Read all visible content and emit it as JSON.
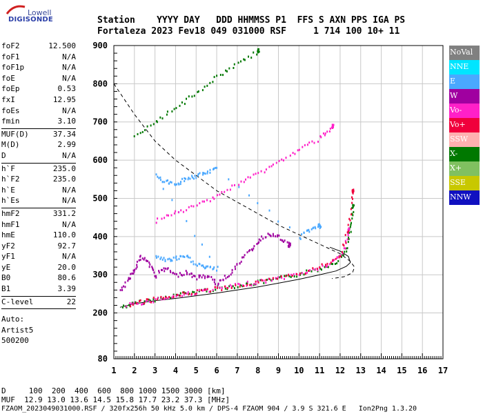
{
  "logo": {
    "line1": "Lowell",
    "line2": "DIGISONDE"
  },
  "header": {
    "line1": "Station    YYYY DAY   DDD HHMMSS P1  FFS S AXN PPS IGA PS",
    "line2": "Fortaleza 2023 Fev18 049 031000 RSF     1 714 100 10+ 11"
  },
  "params": [
    {
      "group": [
        {
          "name": "foF2",
          "value": "12.500"
        },
        {
          "name": "foF1",
          "value": "N/A"
        },
        {
          "name": "foF1p",
          "value": "N/A"
        },
        {
          "name": "foE",
          "value": "N/A"
        },
        {
          "name": "foEp",
          "value": "0.53"
        },
        {
          "name": "fxI",
          "value": "12.95"
        },
        {
          "name": "foEs",
          "value": "N/A"
        },
        {
          "name": "fmin",
          "value": "3.10"
        }
      ]
    },
    {
      "group": [
        {
          "name": "MUF(D)",
          "value": "37.34"
        },
        {
          "name": "M(D)",
          "value": "2.99"
        },
        {
          "name": "D",
          "value": "N/A"
        }
      ]
    },
    {
      "group": [
        {
          "name": "h`F",
          "value": "235.0"
        },
        {
          "name": "h`F2",
          "value": "235.0"
        },
        {
          "name": "h`E",
          "value": "N/A"
        },
        {
          "name": "h`Es",
          "value": "N/A"
        }
      ]
    },
    {
      "group": [
        {
          "name": "hmF2",
          "value": "331.2"
        },
        {
          "name": "hmF1",
          "value": "N/A"
        },
        {
          "name": "hmE",
          "value": "110.0"
        },
        {
          "name": "yF2",
          "value": "92.7"
        },
        {
          "name": "yF1",
          "value": "N/A"
        },
        {
          "name": "yE",
          "value": "20.0"
        },
        {
          "name": "B0",
          "value": "80.6"
        },
        {
          "name": "B1",
          "value": "3.39"
        }
      ]
    },
    {
      "group": [
        {
          "name": "C-level",
          "value": "22"
        }
      ]
    }
  ],
  "auto": {
    "l1": "Auto:",
    "l2": "Artist5",
    "l3": "500200"
  },
  "legend": [
    {
      "label": "NoVal",
      "bg": "#808080",
      "fg": "#ffffff"
    },
    {
      "label": "NNE",
      "bg": "#00e5ff",
      "fg": "#ffffff"
    },
    {
      "label": "E",
      "bg": "#4aa8ff",
      "fg": "#ffffff"
    },
    {
      "label": "W",
      "bg": "#a000a0",
      "fg": "#ffffff"
    },
    {
      "label": "Vo-",
      "bg": "#ff20c8",
      "fg": "#ffffff"
    },
    {
      "label": "Vo+",
      "bg": "#f0003c",
      "fg": "#ffffff"
    },
    {
      "label": "SSW",
      "bg": "#ffb0b0",
      "fg": "#ffffff"
    },
    {
      "label": "X-",
      "bg": "#007800",
      "fg": "#ffffff"
    },
    {
      "label": "X+",
      "bg": "#80c060",
      "fg": "#ffffff"
    },
    {
      "label": "SSE",
      "bg": "#c8c800",
      "fg": "#ffffff"
    },
    {
      "label": "NNW",
      "bg": "#1010c0",
      "fg": "#ffffff"
    }
  ],
  "footer": {
    "l1": "D     100  200  400  600  800 1000 1500 3000 [km]",
    "l2": "MUF  12.9 13.0 13.6 14.5 15.8 17.7 23.2 37.3 [MHz]",
    "l3": "FZAOM_2023049031000.RSF / 320fx256h 50 kHz 5.0 km / DPS-4 FZAOM 904 / 3.9 S 321.6 E   Ion2Png 1.3.20"
  },
  "chart_data": {
    "type": "scatter",
    "title": "",
    "xlabel": "",
    "ylabel": "",
    "xlim": [
      1,
      17
    ],
    "ylim": [
      80,
      900
    ],
    "x_ticks": [
      1,
      2,
      3,
      4,
      5,
      6,
      7,
      8,
      9,
      10,
      11,
      12,
      13,
      14,
      15,
      16,
      17
    ],
    "y_ticks": [
      80,
      200,
      300,
      400,
      500,
      600,
      700,
      800,
      900
    ],
    "grid": true,
    "series": [
      {
        "name": "X-",
        "color": "#007800",
        "points": [
          [
            1.4,
            218
          ],
          [
            2,
            227
          ],
          [
            3,
            238
          ],
          [
            4,
            249
          ],
          [
            5,
            258
          ],
          [
            6,
            266
          ],
          [
            7,
            274
          ],
          [
            8,
            282
          ],
          [
            9,
            292
          ],
          [
            10,
            304
          ],
          [
            11,
            318
          ],
          [
            11.8,
            338
          ],
          [
            12.3,
            370
          ],
          [
            12.5,
            430
          ],
          [
            12.6,
            480
          ]
        ]
      },
      {
        "name": "Vo-",
        "color": "#ff20c8",
        "points": [
          [
            1.6,
            222
          ],
          [
            2.5,
            232
          ],
          [
            3.5,
            242
          ],
          [
            4.5,
            252
          ],
          [
            5.5,
            262
          ],
          [
            6.5,
            270
          ],
          [
            7.5,
            279
          ],
          [
            8.5,
            288
          ],
          [
            9.5,
            299
          ],
          [
            10.5,
            312
          ],
          [
            11.5,
            330
          ],
          [
            12.1,
            360
          ],
          [
            12.4,
            420
          ]
        ]
      },
      {
        "name": "Vo+",
        "color": "#f0003c",
        "points": [
          [
            1.8,
            225
          ],
          [
            2.8,
            236
          ],
          [
            4,
            248
          ],
          [
            5.2,
            260
          ],
          [
            6.5,
            270
          ],
          [
            8,
            282
          ],
          [
            9.5,
            298
          ],
          [
            11,
            322
          ],
          [
            12,
            355
          ],
          [
            12.4,
            430
          ],
          [
            12.6,
            520
          ]
        ]
      },
      {
        "name": "W",
        "color": "#a000a0",
        "points": [
          [
            1.3,
            260
          ],
          [
            1.7,
            290
          ],
          [
            2,
            320
          ],
          [
            2.3,
            350
          ],
          [
            2.7,
            330
          ],
          [
            3,
            300
          ],
          [
            3.5,
            320
          ],
          [
            4,
            300
          ],
          [
            4.5,
            310
          ],
          [
            5,
            295
          ],
          [
            5.5,
            300
          ],
          [
            6,
            280
          ],
          [
            6.5,
            300
          ],
          [
            7,
            330
          ],
          [
            7.5,
            360
          ],
          [
            8,
            390
          ],
          [
            8.5,
            410
          ],
          [
            9,
            400
          ],
          [
            9.5,
            380
          ]
        ]
      },
      {
        "name": "E",
        "color": "#4aa8ff",
        "points": [
          [
            3,
            350
          ],
          [
            3.5,
            340
          ],
          [
            4,
            345
          ],
          [
            4.5,
            350
          ],
          [
            5,
            330
          ],
          [
            5.5,
            320
          ],
          [
            6,
            318
          ],
          [
            3,
            560
          ],
          [
            3.5,
            545
          ],
          [
            4,
            540
          ],
          [
            4.5,
            555
          ],
          [
            5,
            560
          ],
          [
            5.5,
            570
          ],
          [
            6,
            580
          ],
          [
            10,
            400
          ],
          [
            10.5,
            420
          ],
          [
            11,
            430
          ]
        ]
      },
      {
        "name": "Vo- 2nd",
        "color": "#ff20c8",
        "points": [
          [
            3,
            442
          ],
          [
            4,
            464
          ],
          [
            5,
            484
          ],
          [
            6,
            510
          ],
          [
            7,
            540
          ],
          [
            8,
            568
          ],
          [
            9,
            598
          ],
          [
            10,
            630
          ],
          [
            11,
            660
          ],
          [
            11.6,
            690
          ]
        ]
      },
      {
        "name": "X- 3rd",
        "color": "#007800",
        "points": [
          [
            2,
            662
          ],
          [
            3,
            700
          ],
          [
            4,
            740
          ],
          [
            5,
            780
          ],
          [
            6,
            820
          ],
          [
            7,
            856
          ],
          [
            8,
            888
          ]
        ]
      }
    ],
    "lines": [
      {
        "name": "profile",
        "style": "solid",
        "points": [
          [
            1.3,
            215
          ],
          [
            2,
            224
          ],
          [
            3,
            232
          ],
          [
            4,
            238
          ],
          [
            5,
            245
          ],
          [
            6,
            252
          ],
          [
            7,
            260
          ],
          [
            8,
            268
          ],
          [
            9,
            278
          ],
          [
            10,
            288
          ],
          [
            11,
            300
          ],
          [
            11.8,
            310
          ],
          [
            12.3,
            322
          ],
          [
            12.5,
            332
          ],
          [
            12.4,
            348
          ],
          [
            12,
            362
          ],
          [
            11.5,
            372
          ]
        ]
      },
      {
        "name": "dashed",
        "style": "dashed",
        "points": [
          [
            1,
            800
          ],
          [
            1.5,
            760
          ],
          [
            2,
            720
          ],
          [
            2.5,
            685
          ],
          [
            3,
            650
          ],
          [
            4,
            600
          ],
          [
            5,
            560
          ],
          [
            6,
            520
          ],
          [
            7,
            490
          ],
          [
            8,
            460
          ],
          [
            9,
            430
          ],
          [
            10,
            405
          ],
          [
            11,
            380
          ],
          [
            12,
            355
          ],
          [
            12.5,
            335
          ],
          [
            12.7,
            320
          ],
          [
            12.6,
            305
          ],
          [
            12.2,
            295
          ],
          [
            11.6,
            290
          ]
        ]
      }
    ]
  }
}
